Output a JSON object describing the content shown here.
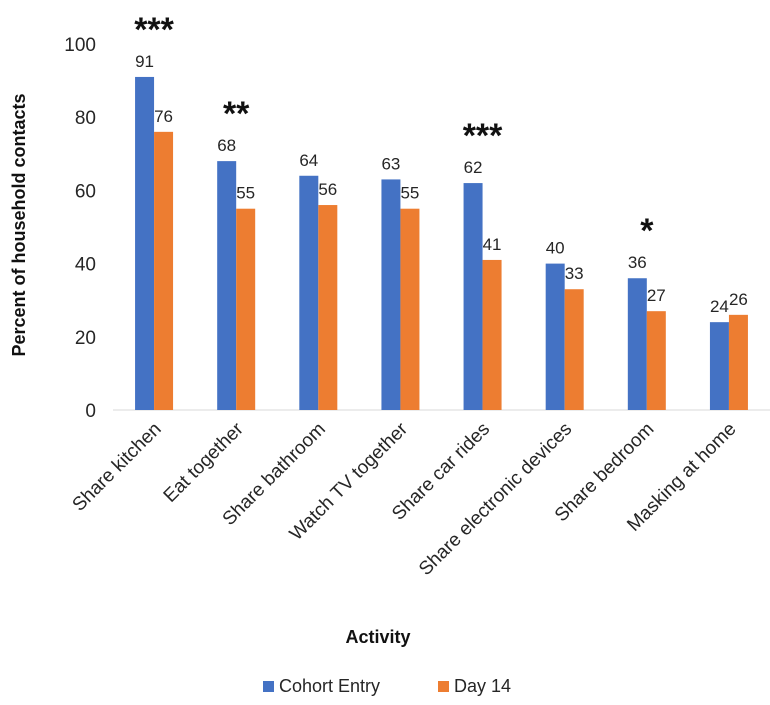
{
  "chart_data": {
    "type": "bar",
    "title": "",
    "xlabel": "Activity",
    "ylabel": "Percent of household contacts",
    "ylim": [
      0,
      100
    ],
    "yticks": [
      0,
      20,
      40,
      60,
      80,
      100
    ],
    "grid": false,
    "legend_position": "bottom",
    "categories": [
      "Share kitchen",
      "Eat together",
      "Share bathroom",
      "Watch TV together",
      "Share car rides",
      "Share electronic devices",
      "Share bedroom",
      "Masking at home"
    ],
    "series": [
      {
        "name": "Cohort Entry",
        "color": "#4472C4",
        "values": [
          91,
          68,
          64,
          63,
          62,
          40,
          36,
          24
        ],
        "labels": [
          "91",
          "68",
          "64",
          "63",
          "62",
          "40",
          "36",
          "24"
        ]
      },
      {
        "name": "Day 14",
        "color": "#ED7D31",
        "values": [
          76,
          55,
          56,
          55,
          41,
          33,
          27,
          26
        ],
        "labels": [
          "76",
          "55",
          "56",
          "55",
          "41",
          "33",
          "27",
          "26"
        ]
      }
    ],
    "significance": [
      "***",
      "**",
      "",
      "",
      "***",
      "",
      "*",
      ""
    ]
  }
}
